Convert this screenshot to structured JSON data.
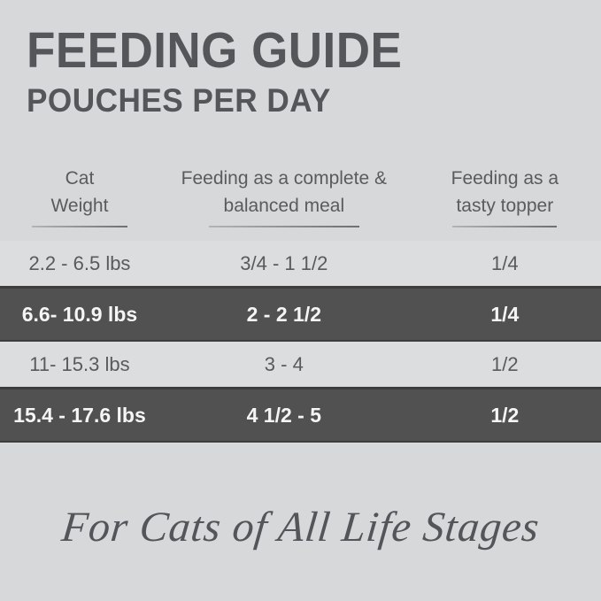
{
  "colors": {
    "background": "#d7d8d9",
    "row_light": "#dcddde",
    "row_dark": "#515151",
    "text_dark": "#55565a",
    "text_on_dark": "#f5f5f5"
  },
  "header": {
    "title": "FEEDING GUIDE",
    "subtitle": "POUCHES PER DAY"
  },
  "table": {
    "columns": [
      {
        "line1": "Cat",
        "line2": "Weight"
      },
      {
        "line1": "Feeding as a complete &",
        "line2": "balanced meal"
      },
      {
        "line1": "Feeding as a",
        "line2": "tasty topper"
      }
    ],
    "rows": [
      {
        "weight": "2.2 - 6.5 lbs",
        "meal": "3/4 - 1 1/2",
        "topper": "1/4",
        "highlight": false
      },
      {
        "weight": "6.6- 10.9 lbs",
        "meal": "2 - 2 1/2",
        "topper": "1/4",
        "highlight": true
      },
      {
        "weight": "11- 15.3 lbs",
        "meal": "3 - 4",
        "topper": "1/2",
        "highlight": false
      },
      {
        "weight": "15.4 - 17.6 lbs",
        "meal": "4 1/2 - 5",
        "topper": "1/2",
        "highlight": true
      }
    ]
  },
  "footer": {
    "tagline": "For Cats of All Life Stages"
  }
}
